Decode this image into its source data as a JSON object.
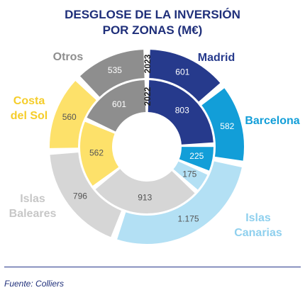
{
  "chart_data": {
    "type": "pie",
    "title": [
      "DESGLOSE DE LA INVERSIÓN",
      "POR ZONAS (M€)"
    ],
    "rings": [
      {
        "name": "2023",
        "values": [
          {
            "zone": "Madrid",
            "value": 601,
            "label": "601"
          },
          {
            "zone": "Barcelona",
            "value": 582,
            "label": "582"
          },
          {
            "zone": "Islas Canarias",
            "value": 1175,
            "label": "1.175"
          },
          {
            "zone": "Islas Baleares",
            "value": 796,
            "label": "796"
          },
          {
            "zone": "Costa del Sol",
            "value": 560,
            "label": "560"
          },
          {
            "zone": "Otros",
            "value": 535,
            "label": "535"
          }
        ]
      },
      {
        "name": "2022",
        "values": [
          {
            "zone": "Madrid",
            "value": 803,
            "label": "803"
          },
          {
            "zone": "Barcelona",
            "value": 225,
            "label": "225"
          },
          {
            "zone": "Islas Canarias",
            "value": 175,
            "label": "175"
          },
          {
            "zone": "Islas Baleares",
            "value": 913,
            "label": "913"
          },
          {
            "zone": "Costa del Sol",
            "value": 562,
            "label": "562"
          },
          {
            "zone": "Otros",
            "value": 601,
            "label": "601"
          }
        ]
      }
    ],
    "zones": [
      {
        "name": "Madrid",
        "lines": [
          "Madrid"
        ],
        "color": "#263a8c",
        "text_color": "#263a8c",
        "value_color": "#ffffff"
      },
      {
        "name": "Barcelona",
        "lines": [
          "Barcelona"
        ],
        "color": "#129ed8",
        "text_color": "#129ed8",
        "value_color": "#ffffff"
      },
      {
        "name": "Islas Canarias",
        "lines": [
          "Islas",
          "Canarias"
        ],
        "color": "#b3e0f4",
        "text_color": "#8fd0ee",
        "value_color": "#555555"
      },
      {
        "name": "Islas Baleares",
        "lines": [
          "Islas",
          "Baleares"
        ],
        "color": "#d6d6d6",
        "text_color": "#c7c7c7",
        "value_color": "#555555"
      },
      {
        "name": "Costa del Sol",
        "lines": [
          "Costa",
          "del Sol"
        ],
        "color": "#fde16a",
        "text_color": "#f5cd2a",
        "value_color": "#555555"
      },
      {
        "name": "Otros",
        "lines": [
          "Otros"
        ],
        "color": "#8e8e8e",
        "text_color": "#8e8e8e",
        "value_color": "#ffffff"
      }
    ]
  },
  "footer": {
    "source": "Fuente: Colliers"
  }
}
